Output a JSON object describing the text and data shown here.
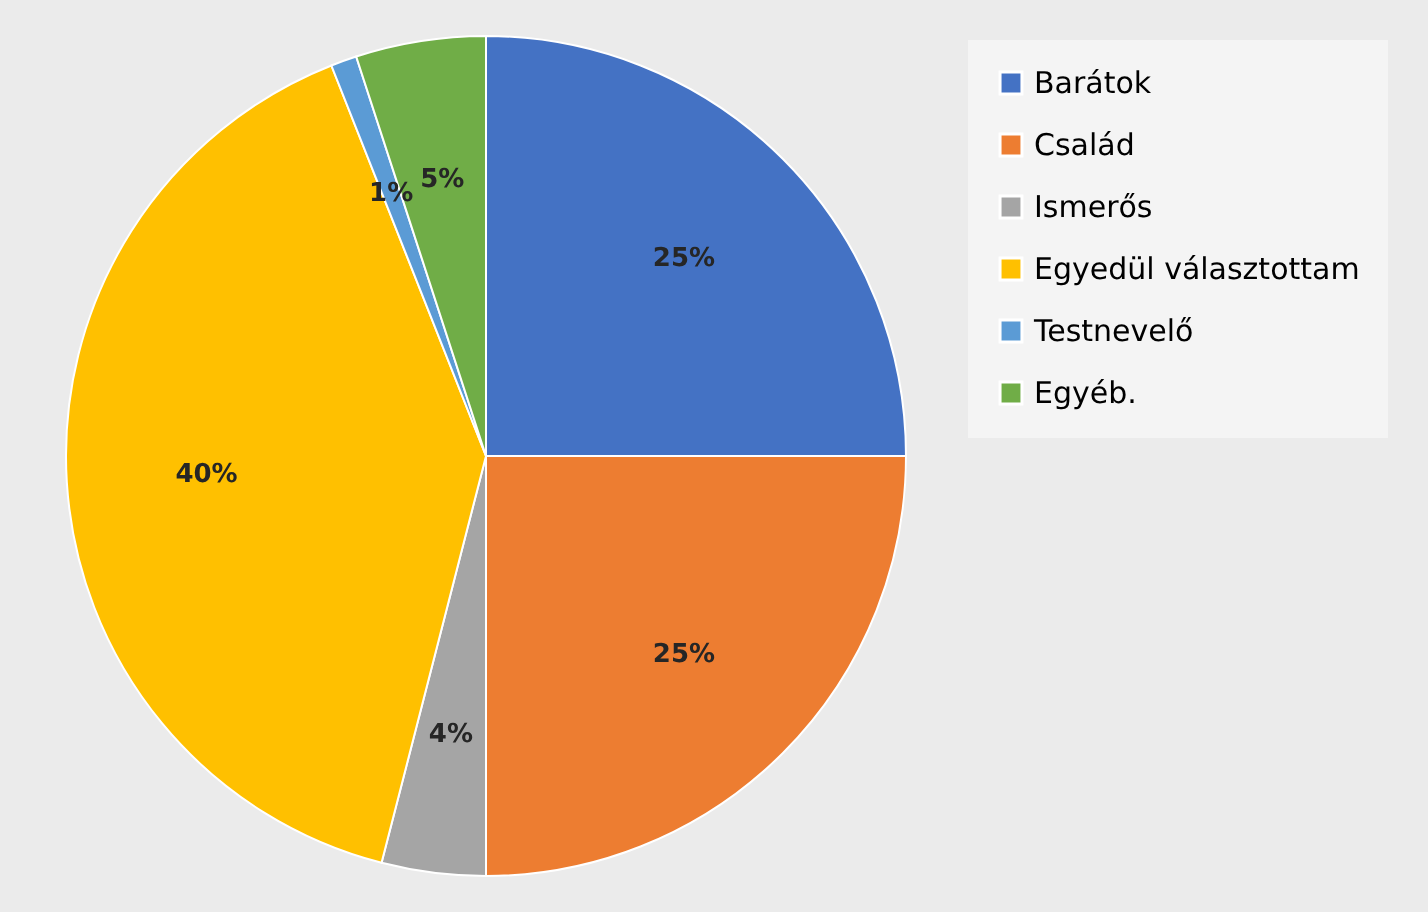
{
  "chart_data": {
    "type": "pie",
    "categories": [
      "Barátok",
      "Család",
      "Ismerős",
      "Egyedül választottam",
      "Testnevelő",
      "Egyéb."
    ],
    "values": [
      25,
      25,
      4,
      40,
      1,
      5
    ],
    "colors": [
      "#4472c4",
      "#ed7d31",
      "#a5a5a5",
      "#ffc000",
      "#5b9bd5",
      "#70ad47"
    ],
    "value_labels": [
      "25%",
      "25%",
      "4%",
      "40%",
      "1%",
      "5%"
    ],
    "legend": "right"
  }
}
